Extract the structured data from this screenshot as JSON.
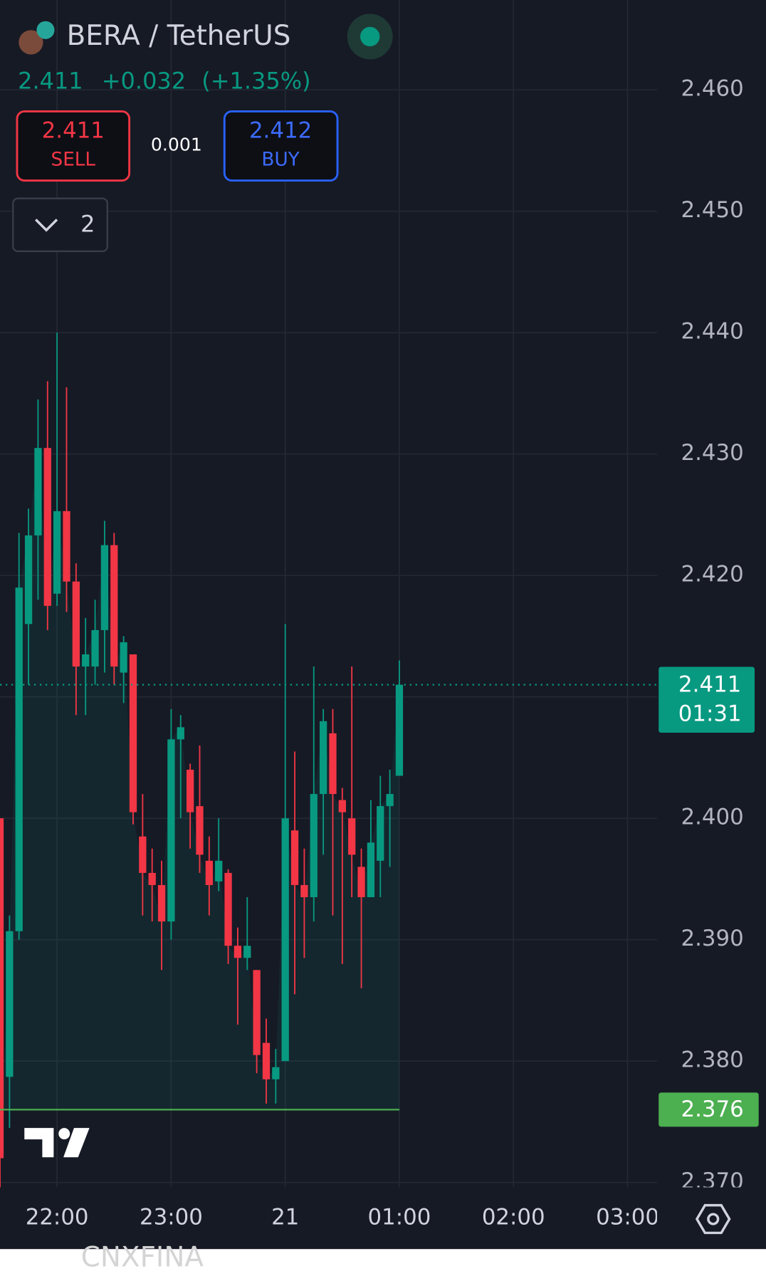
{
  "header": {
    "symbol": "BERA / TetherUS",
    "price": "2.411",
    "change": "+0.032",
    "change_pct": "(+1.35%)"
  },
  "trade": {
    "sell_price": "2.411",
    "sell_label": "SELL",
    "spread": "0.001",
    "buy_price": "2.412",
    "buy_label": "BUY"
  },
  "indicator_count": "2",
  "watermark": "CNXFINA",
  "chart_data": {
    "type": "candlestick",
    "x": [
      -6,
      -5,
      -4,
      -3,
      -2,
      -1,
      0,
      1,
      2,
      3,
      4,
      5,
      6,
      7,
      8,
      9,
      10,
      11,
      12,
      13,
      14,
      15,
      16,
      17,
      18,
      19,
      20,
      21,
      22,
      23,
      24,
      25,
      26,
      27,
      28,
      29,
      30,
      31,
      32,
      33,
      34,
      35,
      36
    ],
    "open": [
      2.4,
      2.3787,
      2.3907,
      2.416,
      2.4233,
      2.4305,
      2.4185,
      2.4253,
      2.4195,
      2.4125,
      2.4125,
      2.4155,
      2.4225,
      2.412,
      2.4135,
      2.3985,
      2.3955,
      2.3945,
      2.3915,
      2.4065,
      2.404,
      2.401,
      2.3965,
      2.3948,
      2.3955,
      2.3895,
      2.3885,
      2.3875,
      2.3815,
      2.3785,
      2.38,
      2.399,
      2.3945,
      2.3935,
      2.402,
      2.407,
      2.4015,
      2.4,
      2.396,
      2.3935,
      2.3965,
      2.401,
      2.4035
    ],
    "high": [
      2.4,
      2.392,
      2.4235,
      2.4255,
      2.4345,
      2.436,
      2.44,
      2.4355,
      2.421,
      2.4165,
      2.418,
      2.4245,
      2.4235,
      2.415,
      2.4135,
      2.402,
      2.3975,
      2.3965,
      2.409,
      2.4085,
      2.4045,
      2.406,
      2.3985,
      2.4,
      2.3958,
      2.391,
      2.3935,
      2.3875,
      2.3835,
      2.381,
      2.416,
      2.4055,
      2.3975,
      2.4125,
      2.409,
      2.409,
      2.4025,
      2.4125,
      2.3975,
      2.4015,
      2.4035,
      2.404,
      2.413
    ],
    "low": [
      2.369,
      2.3745,
      2.39,
      2.411,
      2.418,
      2.4155,
      2.4175,
      2.417,
      2.4085,
      2.4085,
      2.411,
      2.412,
      2.411,
      2.4095,
      2.3995,
      2.392,
      2.3915,
      2.3875,
      2.39,
      2.4,
      2.3975,
      2.3955,
      2.392,
      2.394,
      2.388,
      2.383,
      2.3875,
      2.379,
      2.3765,
      2.3765,
      2.38,
      2.3855,
      2.3885,
      2.3915,
      2.397,
      2.392,
      2.388,
      2.3935,
      2.386,
      2.3935,
      2.3935,
      2.396,
      2.4035
    ],
    "close": [
      2.372,
      2.3907,
      2.419,
      2.4233,
      2.4305,
      2.4175,
      2.4253,
      2.4195,
      2.4125,
      2.4135,
      2.4155,
      2.4225,
      2.4125,
      2.4145,
      2.4005,
      2.3955,
      2.3945,
      2.3915,
      2.4065,
      2.4075,
      2.4005,
      2.397,
      2.3945,
      2.3965,
      2.3895,
      2.3885,
      2.3895,
      2.3805,
      2.3785,
      2.3795,
      2.4,
      2.3945,
      2.3935,
      2.402,
      2.408,
      2.402,
      2.4005,
      2.397,
      2.3935,
      2.398,
      2.401,
      2.402,
      2.411
    ],
    "xlim": [
      -6,
      63.1
    ],
    "xticks": [
      {
        "value": 0,
        "label": "22:00"
      },
      {
        "value": 12,
        "label": "23:00"
      },
      {
        "value": 24,
        "label": "21"
      },
      {
        "value": 36,
        "label": "01:00"
      },
      {
        "value": 48,
        "label": "02:00"
      },
      {
        "value": 60,
        "label": "03:00"
      }
    ],
    "ylim": [
      2.3696,
      2.4674
    ],
    "yticks": [
      {
        "value": 2.37,
        "label": "2.370"
      },
      {
        "value": 2.38,
        "label": "2.380"
      },
      {
        "value": 2.39,
        "label": "2.390"
      },
      {
        "value": 2.4,
        "label": "2.400"
      },
      {
        "value": 2.41,
        "label": "2.410"
      },
      {
        "value": 2.42,
        "label": "2.420"
      },
      {
        "value": 2.43,
        "label": "2.430"
      },
      {
        "value": 2.44,
        "label": "2.440"
      },
      {
        "value": 2.45,
        "label": "2.450"
      },
      {
        "value": 2.46,
        "label": "2.460"
      }
    ],
    "hidden_ytick_labels": [
      "2.410"
    ],
    "up_color": "#089981",
    "down_color": "#f23645",
    "grid": true,
    "last_price": {
      "value": 2.411,
      "label": "2.411"
    },
    "countdown": "01:31",
    "low_line": {
      "value": 2.376,
      "label": "2.376"
    },
    "low_line_color": "#4caf50"
  }
}
